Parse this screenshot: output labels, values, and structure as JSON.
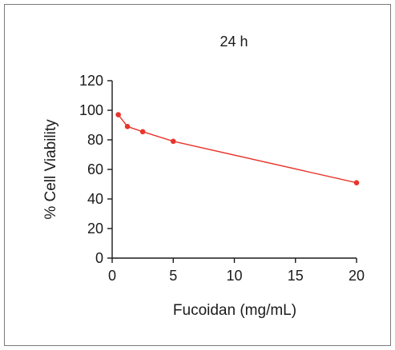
{
  "chart_data": {
    "type": "line",
    "title": "24 h",
    "xlabel": "Fucoidan (mg/mL)",
    "ylabel": "% Cell Viability",
    "xlim": [
      0,
      20
    ],
    "ylim": [
      0,
      120
    ],
    "xticks": [
      "0",
      "5",
      "10",
      "15",
      "20"
    ],
    "yticks": [
      "0",
      "20",
      "40",
      "60",
      "80",
      "100",
      "120"
    ],
    "grid": false,
    "legend": "none",
    "series": [
      {
        "color": "#e8352a",
        "x": [
          0.5,
          1.25,
          2.5,
          5,
          20
        ],
        "y": [
          97,
          89,
          85.5,
          79,
          51
        ]
      }
    ]
  }
}
